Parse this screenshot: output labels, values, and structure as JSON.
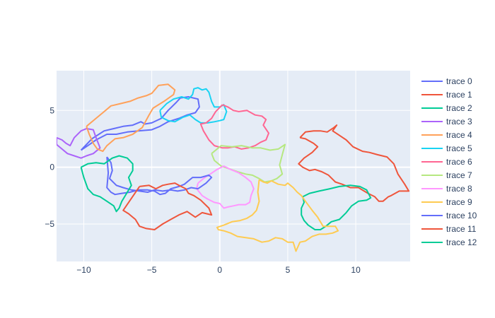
{
  "chart_data": {
    "type": "line",
    "title": "",
    "xlabel": "",
    "ylabel": "",
    "xlim": [
      -12,
      14
    ],
    "ylim": [
      -8.3,
      8.5
    ],
    "x_ticks": [
      -10,
      -5,
      0,
      5,
      10
    ],
    "x_tick_labels": [
      "−10",
      "−5",
      "0",
      "5",
      "10"
    ],
    "y_ticks": [
      -5,
      0,
      5
    ],
    "y_tick_labels": [
      "−5",
      "0",
      "5"
    ],
    "grid": true,
    "legend_position": "right",
    "colors": {
      "plot_background": "#E5ECF6",
      "grid": "#ffffff",
      "text": "#2a3f5f"
    },
    "series": [
      {
        "name": "trace 0",
        "color": "#636EFA",
        "x": [
          -10.2,
          -9.4,
          -8.5,
          -7.8,
          -7.1,
          -6.4,
          -5.8,
          -5.5,
          -5.0,
          -4.3,
          -3.8,
          -3.2,
          -2.9,
          -2.3,
          -1.6,
          -1.5,
          -1.8,
          -2.4,
          -3.0,
          -3.8,
          -4.4,
          -5.0,
          -6.0,
          -6.8,
          -7.6,
          -8.3,
          -9.1,
          -9.7,
          -10.2
        ],
        "y": [
          1.5,
          2.5,
          3.2,
          3.4,
          3.6,
          3.7,
          4.0,
          3.8,
          3.9,
          4.3,
          5.0,
          5.7,
          6.1,
          6.2,
          6.0,
          5.3,
          4.8,
          4.6,
          4.3,
          4.0,
          3.6,
          3.3,
          3.2,
          3.1,
          2.9,
          2.9,
          2.4,
          1.9,
          1.5
        ]
      },
      {
        "name": "trace 1",
        "color": "#EF553B",
        "x": [
          5.9,
          6.3,
          6.9,
          7.4,
          7.9,
          8.4,
          8.6,
          8.3,
          8.8,
          9.3,
          9.8,
          10.5,
          11.0,
          11.6,
          12.3,
          12.8,
          13.1,
          13.6,
          13.9,
          13.2,
          12.6,
          12.4,
          12.0,
          11.7,
          11.4,
          10.9,
          10.2,
          9.6,
          9.0,
          8.5,
          8.0,
          7.5,
          7.0,
          6.6,
          6.1,
          5.8,
          6.2,
          6.8,
          7.2,
          6.9,
          6.3,
          5.9
        ],
        "y": [
          2.6,
          3.1,
          3.2,
          3.2,
          3.1,
          3.5,
          3.7,
          3.2,
          2.8,
          2.4,
          1.8,
          1.4,
          1.3,
          1.1,
          0.9,
          0.3,
          -0.6,
          -1.5,
          -2.1,
          -2.1,
          -2.5,
          -2.6,
          -3.0,
          -3.0,
          -2.6,
          -2.3,
          -1.8,
          -1.8,
          -1.5,
          -1.3,
          -0.7,
          -0.4,
          -0.2,
          -0.3,
          0.0,
          0.3,
          0.8,
          1.3,
          1.8,
          2.1,
          2.5,
          2.6
        ]
      },
      {
        "name": "trace 2",
        "color": "#00CC96",
        "x": [
          6.1,
          6.6,
          7.3,
          8.1,
          8.8,
          9.6,
          10.3,
          10.8,
          11.1,
          10.8,
          10.2,
          9.7,
          9.3,
          8.8,
          8.2,
          7.8,
          7.4,
          7.0,
          6.5,
          6.2,
          6.0,
          6.0,
          6.2,
          6.1
        ],
        "y": [
          -2.6,
          -2.3,
          -2.1,
          -1.9,
          -1.7,
          -1.6,
          -1.7,
          -2.0,
          -2.7,
          -2.9,
          -3.0,
          -3.4,
          -4.0,
          -4.6,
          -4.8,
          -5.2,
          -5.5,
          -5.5,
          -5.1,
          -4.7,
          -4.2,
          -3.6,
          -3.1,
          -2.6
        ]
      },
      {
        "name": "trace 3",
        "color": "#AB63FA",
        "x": [
          -12.0,
          -11.6,
          -11.3,
          -11.0,
          -10.7,
          -10.2,
          -9.8,
          -9.3,
          -9.1,
          -8.8,
          -9.3,
          -9.8,
          -10.2,
          -10.7,
          -11.2,
          -11.6,
          -12.0,
          -12.0
        ],
        "y": [
          2.6,
          2.4,
          2.1,
          1.9,
          2.6,
          3.2,
          3.4,
          3.3,
          2.6,
          1.7,
          1.2,
          1.0,
          0.8,
          1.0,
          1.2,
          1.6,
          2.0,
          2.6
        ]
      },
      {
        "name": "trace 4",
        "color": "#FFA15A",
        "x": [
          -9.8,
          -9.2,
          -8.6,
          -8.0,
          -7.3,
          -6.6,
          -6.0,
          -5.4,
          -5.0,
          -4.5,
          -3.8,
          -3.3,
          -3.4,
          -4.1,
          -4.9,
          -5.2,
          -5.7,
          -6.4,
          -7.1,
          -7.7,
          -8.3,
          -8.6,
          -9.0,
          -9.3,
          -9.6,
          -9.8
        ],
        "y": [
          3.6,
          4.2,
          4.8,
          5.4,
          5.6,
          5.8,
          6.1,
          6.3,
          6.5,
          7.2,
          7.3,
          6.8,
          6.4,
          5.8,
          5.2,
          4.6,
          3.5,
          2.9,
          2.6,
          2.5,
          1.9,
          1.4,
          1.6,
          2.1,
          2.9,
          3.6
        ]
      },
      {
        "name": "trace 5",
        "color": "#19D3F3",
        "x": [
          -4.4,
          -3.9,
          -3.4,
          -2.8,
          -2.3,
          -2.0,
          -1.9,
          -1.6,
          -1.3,
          -1.0,
          -0.8,
          -0.6,
          -0.4,
          0.0,
          0.3,
          0.5,
          0.3,
          0.0,
          -0.4,
          -0.9,
          -1.4,
          -1.8,
          -2.2,
          -2.7,
          -3.3,
          -3.8,
          -4.3,
          -4.4
        ],
        "y": [
          5.0,
          5.6,
          6.0,
          6.2,
          6.0,
          6.4,
          6.9,
          7.0,
          6.8,
          6.9,
          6.6,
          5.8,
          5.3,
          5.3,
          5.5,
          4.9,
          4.2,
          4.1,
          4.0,
          3.9,
          3.9,
          4.2,
          4.6,
          4.4,
          4.0,
          4.1,
          4.4,
          5.0
        ]
      },
      {
        "name": "trace 6",
        "color": "#FF6692",
        "x": [
          0.2,
          0.6,
          1.0,
          1.4,
          2.0,
          2.6,
          3.1,
          3.4,
          3.2,
          3.6,
          3.4,
          3.0,
          2.6,
          2.1,
          1.6,
          1.1,
          0.6,
          0.2,
          -0.4,
          -0.8,
          -1.2,
          -1.4,
          -1.0,
          -0.6,
          -0.3,
          0.2
        ],
        "y": [
          5.5,
          5.3,
          5.0,
          4.9,
          5.0,
          4.6,
          4.5,
          4.2,
          3.7,
          3.0,
          2.4,
          2.2,
          1.9,
          1.7,
          1.6,
          1.8,
          1.7,
          1.7,
          1.9,
          2.4,
          3.2,
          3.8,
          3.9,
          4.3,
          4.9,
          5.5
        ]
      },
      {
        "name": "trace 7",
        "color": "#B6E880",
        "x": [
          -0.6,
          0.1,
          0.9,
          1.6,
          2.4,
          3.0,
          3.7,
          4.3,
          4.8,
          4.6,
          4.4,
          4.6,
          4.2,
          3.8,
          3.3,
          2.9,
          2.4,
          1.9,
          1.3,
          0.6,
          0.1,
          -0.4,
          -0.6
        ],
        "y": [
          1.2,
          1.9,
          1.8,
          1.9,
          1.7,
          1.7,
          1.5,
          1.6,
          2.0,
          1.1,
          0.2,
          -0.6,
          -1.0,
          -1.2,
          -1.3,
          -1.0,
          -0.7,
          -0.6,
          -0.4,
          -0.1,
          0.1,
          0.6,
          1.2
        ]
      },
      {
        "name": "trace 8",
        "color": "#FF97FF",
        "x": [
          -1.6,
          -1.2,
          -0.7,
          -0.2,
          0.3,
          0.8,
          1.4,
          1.9,
          2.3,
          2.5,
          2.3,
          2.2,
          1.9,
          1.4,
          1.0,
          0.6,
          0.3,
          0.0,
          -0.4,
          -0.9,
          -1.3,
          -1.7,
          -1.6
        ],
        "y": [
          -1.4,
          -1.0,
          -0.6,
          -0.2,
          0.1,
          -0.2,
          -0.5,
          -0.9,
          -1.3,
          -1.9,
          -2.5,
          -3.1,
          -3.3,
          -3.3,
          -3.4,
          -3.5,
          -3.6,
          -3.2,
          -3.1,
          -2.8,
          -2.5,
          -1.9,
          -1.4
        ]
      },
      {
        "name": "trace 9",
        "color": "#FECB52",
        "x": [
          2.9,
          3.2,
          3.5,
          3.8,
          4.3,
          4.8,
          5.0,
          5.4,
          5.7,
          6.0,
          6.3,
          6.8,
          7.2,
          7.6,
          8.0,
          8.5,
          8.7,
          8.3,
          7.8,
          7.3,
          6.8,
          6.3,
          5.9,
          5.6,
          5.4,
          5.0,
          4.6,
          4.1,
          3.6,
          3.1,
          2.5,
          1.9,
          1.3,
          0.8,
          0.3,
          -0.1,
          -0.2,
          0.3,
          0.9,
          1.5,
          2.0,
          2.4,
          2.7,
          2.9,
          2.8,
          2.9
        ],
        "y": [
          -1.1,
          -1.3,
          -1.4,
          -1.2,
          -1.5,
          -1.6,
          -1.4,
          -1.8,
          -2.2,
          -2.5,
          -3.0,
          -3.8,
          -4.4,
          -5.2,
          -5.2,
          -5.2,
          -5.6,
          -5.8,
          -5.9,
          -5.9,
          -6.1,
          -6.5,
          -6.6,
          -7.4,
          -6.6,
          -6.6,
          -6.3,
          -6.2,
          -6.5,
          -6.6,
          -6.3,
          -6.2,
          -6.1,
          -5.8,
          -5.6,
          -5.5,
          -5.3,
          -5.1,
          -4.8,
          -4.7,
          -4.5,
          -4.2,
          -3.8,
          -3.0,
          -2.2,
          -1.1
        ]
      },
      {
        "name": "trace 10",
        "color": "#636EFA",
        "x": [
          -8.3,
          -8.0,
          -7.9,
          -8.1,
          -7.6,
          -7.1,
          -6.5,
          -5.9,
          -5.3,
          -4.8,
          -4.2,
          -3.6,
          -3.1,
          -2.6,
          -2.1,
          -1.6,
          -1.0,
          -0.6,
          -0.8,
          -1.4,
          -2.0,
          -2.6,
          -3.0,
          -3.6,
          -4.0,
          -4.4,
          -4.8,
          -5.3,
          -6.0,
          -6.6,
          -7.2,
          -7.7,
          -8.0,
          -8.3,
          -8.2,
          -8.3
        ],
        "y": [
          0.9,
          0.4,
          -0.3,
          -1.0,
          -1.6,
          -1.8,
          -2.0,
          -2.1,
          -2.2,
          -2.0,
          -2.1,
          -2.0,
          -2.1,
          -2.0,
          -1.8,
          -1.9,
          -1.4,
          -0.9,
          -0.7,
          -0.9,
          -0.9,
          -1.5,
          -1.7,
          -1.9,
          -2.3,
          -2.4,
          -2.1,
          -2.0,
          -2.0,
          -2.2,
          -2.3,
          -2.4,
          -2.2,
          -1.8,
          -0.5,
          0.9
        ]
      },
      {
        "name": "trace 11",
        "color": "#EF553B",
        "x": [
          -5.9,
          -5.2,
          -4.7,
          -4.2,
          -3.8,
          -3.3,
          -3.0,
          -2.5,
          -2.3,
          -1.9,
          -1.4,
          -0.8,
          -0.6,
          -1.3,
          -1.8,
          -2.4,
          -3.0,
          -3.6,
          -4.2,
          -4.8,
          -5.4,
          -5.9,
          -6.2,
          -6.7,
          -7.1,
          -5.9
        ],
        "y": [
          -1.7,
          -1.6,
          -1.9,
          -1.6,
          -1.5,
          -1.4,
          -1.6,
          -1.9,
          -2.3,
          -2.5,
          -2.9,
          -3.6,
          -4.2,
          -4.0,
          -4.4,
          -3.9,
          -4.2,
          -4.6,
          -5.0,
          -5.5,
          -5.4,
          -5.2,
          -4.6,
          -4.1,
          -3.8,
          -1.7
        ]
      },
      {
        "name": "trace 12",
        "color": "#00CC96",
        "x": [
          -10.2,
          -9.7,
          -9.1,
          -8.5,
          -7.9,
          -7.4,
          -6.8,
          -6.4,
          -6.4,
          -6.7,
          -6.5,
          -6.8,
          -7.0,
          -7.2,
          -7.4,
          -7.6,
          -7.8,
          -8.3,
          -8.8,
          -9.3,
          -9.7,
          -10.0,
          -10.2
        ],
        "y": [
          0.0,
          0.3,
          0.4,
          0.3,
          0.8,
          1.0,
          0.8,
          0.3,
          -0.3,
          -0.9,
          -1.6,
          -2.2,
          -2.6,
          -3.0,
          -3.6,
          -3.9,
          -3.4,
          -3.0,
          -2.6,
          -2.4,
          -1.9,
          -0.9,
          0.0
        ]
      }
    ]
  }
}
